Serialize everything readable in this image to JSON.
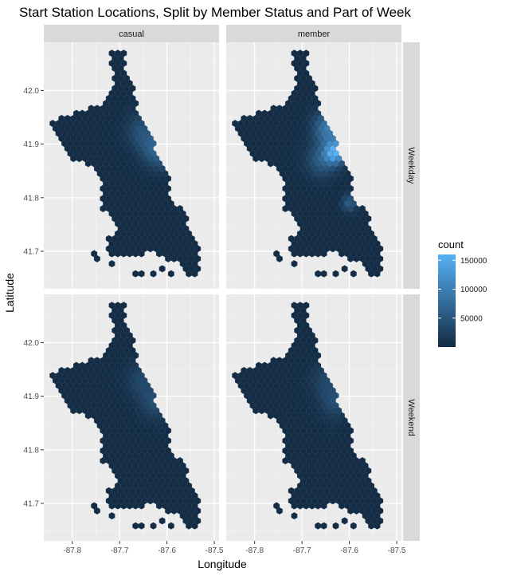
{
  "chart_data": {
    "type": "heatmap",
    "subtype": "hexbin",
    "title": "Start Station Locations, Split by Member Status and Part of Week",
    "xlabel": "Longitude",
    "ylabel": "Latitude",
    "xlim": [
      -87.86,
      -87.49
    ],
    "ylim": [
      41.63,
      42.09
    ],
    "x_ticks": [
      -87.8,
      -87.7,
      -87.6,
      -87.5
    ],
    "x_tick_labels": [
      "-87.8",
      "-87.7",
      "-87.6",
      "-87.5"
    ],
    "y_ticks": [
      41.7,
      41.8,
      41.9,
      42.0
    ],
    "y_tick_labels": [
      "41.7",
      "41.8",
      "41.9",
      "42.0"
    ],
    "grid": true,
    "col_facets": [
      "casual",
      "member"
    ],
    "row_facets": [
      "Weekday",
      "Weekend"
    ],
    "fill_scale": {
      "name": "count",
      "low_color": "#132B43",
      "high_color": "#56B1F7",
      "min": 0,
      "max": 160000,
      "breaks": [
        50000,
        100000,
        150000
      ],
      "break_labels": [
        "50000",
        "100000",
        "150000"
      ]
    },
    "region_outline": [
      [
        -87.72,
        42.07
      ],
      [
        -87.69,
        42.07
      ],
      [
        -87.69,
        42.05
      ],
      [
        -87.67,
        42.0
      ],
      [
        -87.66,
        41.96
      ],
      [
        -87.64,
        41.93
      ],
      [
        -87.62,
        41.88
      ],
      [
        -87.6,
        41.85
      ],
      [
        -87.59,
        41.8
      ],
      [
        -87.56,
        41.77
      ],
      [
        -87.55,
        41.73
      ],
      [
        -87.53,
        41.7
      ],
      [
        -87.53,
        41.66
      ],
      [
        -87.555,
        41.655
      ],
      [
        -87.58,
        41.68
      ],
      [
        -87.6,
        41.685
      ],
      [
        -87.63,
        41.7
      ],
      [
        -87.67,
        41.69
      ],
      [
        -87.72,
        41.695
      ],
      [
        -87.73,
        41.72
      ],
      [
        -87.7,
        41.74
      ],
      [
        -87.71,
        41.76
      ],
      [
        -87.74,
        41.78
      ],
      [
        -87.74,
        41.83
      ],
      [
        -87.76,
        41.86
      ],
      [
        -87.8,
        41.87
      ],
      [
        -87.82,
        41.9
      ],
      [
        -87.84,
        41.925
      ],
      [
        -87.85,
        41.935
      ],
      [
        -87.84,
        41.945
      ],
      [
        -87.79,
        41.96
      ],
      [
        -87.75,
        41.97
      ],
      [
        -87.72,
        41.99
      ],
      [
        -87.71,
        42.03
      ],
      [
        -87.72,
        42.06
      ]
    ],
    "outlier_cells": [
      [
        -87.75,
        41.69
      ],
      [
        -87.72,
        41.675
      ],
      [
        -87.66,
        41.66
      ],
      [
        -87.61,
        41.665
      ],
      [
        -87.59,
        41.655
      ],
      [
        -87.625,
        41.66
      ]
    ],
    "panels": [
      {
        "column": "casual",
        "row": "Weekday",
        "hotspots": [
          {
            "x": -87.625,
            "y": 41.89,
            "count": 65000,
            "spread": 0.03
          },
          {
            "x": -87.655,
            "y": 41.925,
            "count": 42000,
            "spread": 0.03
          },
          {
            "x": -87.6,
            "y": 41.87,
            "count": 30000,
            "spread": 0.02
          }
        ]
      },
      {
        "column": "member",
        "row": "Weekday",
        "hotspots": [
          {
            "x": -87.63,
            "y": 41.885,
            "count": 150000,
            "spread": 0.022
          },
          {
            "x": -87.645,
            "y": 41.93,
            "count": 95000,
            "spread": 0.03
          },
          {
            "x": -87.6,
            "y": 41.79,
            "count": 60000,
            "spread": 0.015
          },
          {
            "x": -87.66,
            "y": 41.87,
            "count": 55000,
            "spread": 0.03
          }
        ]
      },
      {
        "column": "casual",
        "row": "Weekend",
        "hotspots": [
          {
            "x": -87.625,
            "y": 41.89,
            "count": 40000,
            "spread": 0.03
          },
          {
            "x": -87.655,
            "y": 41.93,
            "count": 30000,
            "spread": 0.03
          }
        ]
      },
      {
        "column": "member",
        "row": "Weekend",
        "hotspots": [
          {
            "x": -87.63,
            "y": 41.89,
            "count": 38000,
            "spread": 0.03
          },
          {
            "x": -87.65,
            "y": 41.93,
            "count": 28000,
            "spread": 0.03
          }
        ]
      }
    ],
    "legend_position": "right"
  }
}
